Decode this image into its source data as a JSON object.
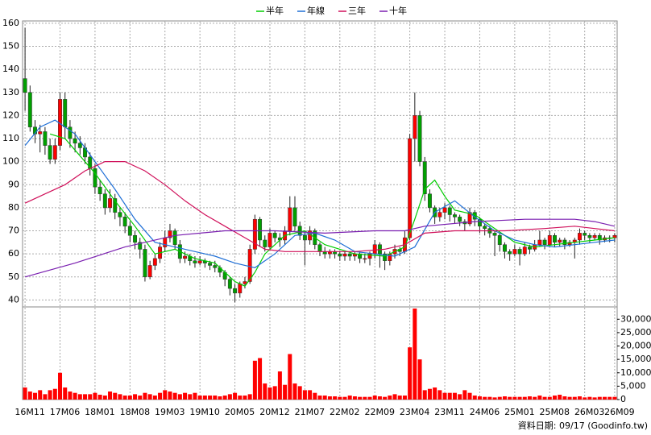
{
  "chart_data": {
    "type": "candlestick",
    "footer": "資料日期: 09/17 (Goodinfo.tw)",
    "up_color": "#ff0000",
    "down_color": "#00a000",
    "volume_color": "#ff0000",
    "grid": true,
    "categories": [
      "16M11",
      null,
      null,
      null,
      null,
      null,
      null,
      "17M06",
      null,
      null,
      null,
      null,
      null,
      null,
      "18M01",
      null,
      null,
      null,
      null,
      null,
      null,
      "18M08",
      null,
      null,
      null,
      null,
      null,
      null,
      "19M03",
      null,
      null,
      null,
      null,
      null,
      null,
      "19M10",
      null,
      null,
      null,
      null,
      null,
      null,
      "20M05",
      null,
      null,
      null,
      null,
      null,
      null,
      "20M12",
      null,
      null,
      null,
      null,
      null,
      null,
      "21M07",
      null,
      null,
      null,
      null,
      null,
      null,
      "22M02",
      null,
      null,
      null,
      null,
      null,
      null,
      "22M09",
      null,
      null,
      null,
      null,
      null,
      null,
      "23M04",
      null,
      null,
      null,
      null,
      null,
      null,
      "23M11",
      null,
      null,
      null,
      null,
      null,
      null,
      "24M06",
      null,
      null,
      null,
      null,
      null,
      null,
      "25M01",
      null,
      null,
      null,
      null,
      null,
      null,
      "25M08",
      null,
      null,
      null,
      null,
      null,
      null,
      "26M03",
      null,
      null,
      null,
      null,
      null,
      "26M09"
    ],
    "ohlc": [
      [
        136,
        158,
        122,
        130
      ],
      [
        130,
        133,
        113,
        115
      ],
      [
        115,
        118,
        108,
        112
      ],
      [
        112,
        116,
        104,
        113
      ],
      [
        113,
        115,
        103,
        107
      ],
      [
        107,
        110,
        99,
        101
      ],
      [
        101,
        110,
        99,
        107
      ],
      [
        107,
        130,
        105,
        127
      ],
      [
        127,
        130,
        110,
        115
      ],
      [
        115,
        118,
        106,
        110
      ],
      [
        110,
        113,
        104,
        108
      ],
      [
        108,
        111,
        103,
        106
      ],
      [
        106,
        108,
        99,
        102
      ],
      [
        102,
        104,
        94,
        97
      ],
      [
        97,
        99,
        86,
        89
      ],
      [
        89,
        92,
        83,
        86
      ],
      [
        86,
        88,
        77,
        80
      ],
      [
        80,
        88,
        78,
        84
      ],
      [
        84,
        86,
        75,
        78
      ],
      [
        78,
        80,
        72,
        76
      ],
      [
        76,
        78,
        69,
        72
      ],
      [
        72,
        74,
        65,
        68
      ],
      [
        68,
        70,
        62,
        65
      ],
      [
        65,
        67,
        58,
        62
      ],
      [
        62,
        64,
        48,
        50
      ],
      [
        50,
        57,
        49,
        55
      ],
      [
        55,
        60,
        53,
        58
      ],
      [
        58,
        65,
        56,
        63
      ],
      [
        63,
        70,
        61,
        67
      ],
      [
        67,
        73,
        65,
        70
      ],
      [
        70,
        71,
        62,
        64
      ],
      [
        64,
        66,
        56,
        58
      ],
      [
        58,
        61,
        56,
        59
      ],
      [
        59,
        60,
        55,
        57
      ],
      [
        57,
        59,
        54,
        56
      ],
      [
        56,
        59,
        55,
        57
      ],
      [
        57,
        58,
        54,
        56
      ],
      [
        56,
        57,
        53,
        55
      ],
      [
        55,
        57,
        52,
        54
      ],
      [
        54,
        55,
        50,
        52
      ],
      [
        52,
        53,
        46,
        49
      ],
      [
        49,
        50,
        42,
        45
      ],
      [
        45,
        47,
        39,
        43
      ],
      [
        43,
        48,
        41,
        47
      ],
      [
        47,
        50,
        45,
        48
      ],
      [
        48,
        64,
        47,
        62
      ],
      [
        62,
        77,
        60,
        75
      ],
      [
        75,
        76,
        63,
        66
      ],
      [
        66,
        68,
        61,
        63
      ],
      [
        63,
        71,
        62,
        69
      ],
      [
        69,
        70,
        65,
        67
      ],
      [
        67,
        69,
        63,
        66
      ],
      [
        66,
        72,
        64,
        70
      ],
      [
        70,
        85,
        68,
        80
      ],
      [
        80,
        85,
        70,
        72
      ],
      [
        72,
        74,
        66,
        68
      ],
      [
        68,
        70,
        55,
        66
      ],
      [
        66,
        72,
        64,
        70
      ],
      [
        70,
        71,
        62,
        64
      ],
      [
        64,
        65,
        59,
        61
      ],
      [
        61,
        63,
        58,
        60
      ],
      [
        60,
        62,
        58,
        61
      ],
      [
        61,
        62,
        58,
        60
      ],
      [
        60,
        61,
        57,
        59
      ],
      [
        59,
        61,
        57,
        60
      ],
      [
        60,
        61,
        57,
        59
      ],
      [
        59,
        61,
        57,
        60
      ],
      [
        60,
        61,
        56,
        58
      ],
      [
        58,
        60,
        56,
        58
      ],
      [
        58,
        61,
        55,
        60
      ],
      [
        60,
        66,
        58,
        64
      ],
      [
        64,
        65,
        54,
        60
      ],
      [
        60,
        61,
        53,
        57
      ],
      [
        57,
        61,
        55,
        60
      ],
      [
        60,
        64,
        58,
        62
      ],
      [
        62,
        63,
        59,
        61
      ],
      [
        61,
        70,
        60,
        67
      ],
      [
        67,
        112,
        66,
        110
      ],
      [
        110,
        130,
        100,
        120
      ],
      [
        120,
        122,
        98,
        100
      ],
      [
        100,
        102,
        83,
        86
      ],
      [
        86,
        88,
        78,
        80
      ],
      [
        80,
        81,
        73,
        76
      ],
      [
        76,
        80,
        74,
        78
      ],
      [
        78,
        82,
        75,
        80
      ],
      [
        80,
        81,
        74,
        77
      ],
      [
        77,
        78,
        73,
        76
      ],
      [
        76,
        77,
        72,
        74
      ],
      [
        74,
        75,
        70,
        73
      ],
      [
        73,
        80,
        72,
        78
      ],
      [
        78,
        79,
        72,
        75
      ],
      [
        75,
        76,
        69,
        72
      ],
      [
        72,
        73,
        68,
        71
      ],
      [
        71,
        72,
        67,
        69
      ],
      [
        69,
        70,
        59,
        68
      ],
      [
        68,
        69,
        61,
        64
      ],
      [
        64,
        65,
        58,
        61
      ],
      [
        61,
        62,
        57,
        60
      ],
      [
        60,
        64,
        59,
        62
      ],
      [
        62,
        63,
        55,
        60
      ],
      [
        60,
        65,
        59,
        63
      ],
      [
        63,
        64,
        60,
        62
      ],
      [
        62,
        66,
        61,
        64
      ],
      [
        64,
        70,
        63,
        66
      ],
      [
        66,
        67,
        62,
        64
      ],
      [
        64,
        70,
        63,
        68
      ],
      [
        68,
        69,
        63,
        65
      ],
      [
        65,
        67,
        63,
        66
      ],
      [
        66,
        67,
        62,
        64
      ],
      [
        64,
        66,
        63,
        65
      ],
      [
        65,
        67,
        58,
        66
      ],
      [
        66,
        71,
        64,
        69
      ],
      [
        69,
        70,
        66,
        68
      ],
      [
        68,
        69,
        65,
        67
      ],
      [
        67,
        69,
        66,
        68
      ],
      [
        68,
        69,
        64,
        66
      ],
      [
        66,
        68,
        65,
        67
      ],
      [
        67,
        68,
        65,
        67
      ],
      [
        67,
        69,
        65,
        68
      ]
    ],
    "volume": [
      4500,
      3000,
      2500,
      3500,
      2000,
      3500,
      4000,
      10000,
      4500,
      3000,
      2500,
      2000,
      2000,
      2000,
      2500,
      1800,
      1500,
      3000,
      2500,
      2000,
      1500,
      1500,
      2000,
      1500,
      2500,
      2000,
      1500,
      2500,
      3500,
      3000,
      2500,
      2000,
      2500,
      2000,
      2500,
      1500,
      1500,
      1500,
      1500,
      1200,
      1500,
      2000,
      2500,
      1500,
      1500,
      2000,
      14500,
      15500,
      6000,
      4500,
      5000,
      10500,
      5500,
      17000,
      6000,
      5000,
      3500,
      3500,
      2500,
      1500,
      1500,
      1200,
      1200,
      1000,
      1000,
      1500,
      1200,
      1000,
      1000,
      1000,
      1500,
      1200,
      1000,
      1500,
      2000,
      1500,
      1500,
      19500,
      34000,
      15000,
      3500,
      4000,
      4500,
      3500,
      2500,
      2500,
      2500,
      2000,
      3500,
      2500,
      1500,
      1200,
      1000,
      1000,
      800,
      1000,
      1200,
      1000,
      1000,
      1000,
      1000,
      1200,
      1000,
      1500,
      1000,
      1000,
      1500,
      1800,
      1200,
      1000,
      1000,
      1200,
      800,
      1000,
      800,
      1000,
      1000,
      1000,
      1000
    ],
    "series": [
      {
        "name": "半年",
        "color": "#00cc00",
        "x": [
          5,
          8,
          10,
          14,
          18,
          22,
          26,
          30,
          34,
          38,
          42,
          44,
          46,
          48,
          52,
          56,
          60,
          66,
          72,
          76,
          78,
          80,
          82,
          84,
          86,
          90,
          94,
          98,
          102,
          106,
          110,
          114,
          118
        ],
        "values": [
          112,
          110,
          105,
          95,
          83,
          72,
          60,
          62,
          58,
          56,
          48,
          46,
          52,
          60,
          68,
          70,
          64,
          60,
          59,
          63,
          75,
          88,
          92,
          85,
          79,
          77,
          71,
          65,
          63,
          64,
          65,
          66,
          67
        ]
      },
      {
        "name": "年線",
        "color": "#1f6fd6",
        "x": [
          0,
          3,
          6,
          10,
          14,
          18,
          22,
          26,
          30,
          34,
          38,
          42,
          46,
          50,
          54,
          58,
          62,
          66,
          70,
          74,
          78,
          82,
          86,
          90,
          94,
          98,
          102,
          106,
          110,
          114,
          118
        ],
        "values": [
          107,
          115,
          118,
          112,
          100,
          88,
          75,
          65,
          63,
          61,
          59,
          56,
          54,
          60,
          68,
          69,
          66,
          61,
          60,
          59,
          63,
          78,
          83,
          76,
          70,
          66,
          64,
          63,
          64,
          65,
          66
        ]
      },
      {
        "name": "三年",
        "color": "#d0105a",
        "x": [
          0,
          4,
          8,
          12,
          16,
          20,
          24,
          28,
          32,
          36,
          40,
          44,
          48,
          52,
          56,
          60,
          66,
          72,
          76,
          80,
          86,
          90,
          96,
          104,
          110,
          114,
          118
        ],
        "values": [
          82,
          86,
          90,
          96,
          100,
          100,
          96,
          90,
          83,
          77,
          72,
          67,
          62,
          61,
          61,
          61,
          61,
          62,
          64,
          69,
          70,
          70,
          70,
          71,
          72,
          71,
          70
        ]
      },
      {
        "name": "十年",
        "color": "#7a1fb0",
        "x": [
          0,
          10,
          20,
          30,
          40,
          50,
          60,
          70,
          76,
          80,
          90,
          100,
          110,
          114,
          118
        ],
        "values": [
          50,
          56,
          63,
          68,
          70,
          70,
          69,
          70,
          70,
          72,
          74,
          75,
          75,
          74,
          72
        ]
      }
    ],
    "ylim": [
      37,
      161
    ],
    "yticks": [
      40,
      50,
      60,
      70,
      80,
      90,
      100,
      110,
      120,
      130,
      140,
      150,
      160
    ],
    "y2lim": [
      0,
      34000
    ],
    "y2ticks": [
      0,
      {
        "value": 5000,
        "label": "5,000"
      },
      {
        "value": 10000,
        "label": "10,000"
      },
      {
        "value": 15000,
        "label": "15,000"
      },
      {
        "value": 20000,
        "label": "20,000"
      },
      {
        "value": 25000,
        "label": "25,000"
      },
      {
        "value": 30000,
        "label": "30,000"
      }
    ]
  }
}
